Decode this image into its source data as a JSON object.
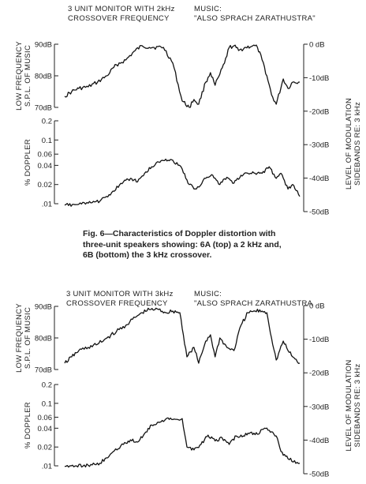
{
  "caption": "Fig. 6—Characteristics of Doppler distortion with three-unit speakers showing: 6A (top) a 2 kHz and, 6B (bottom) the 3 kHz crossover.",
  "chart_data": [
    {
      "type": "line",
      "id": "6A",
      "title_left": [
        "3 UNIT MONITOR WITH 2kHz",
        "CROSSOVER FREQUENCY"
      ],
      "title_right": [
        "MUSIC:",
        "\"ALSO SPRACH ZARATHUSTRA\""
      ],
      "upper_ylabel": [
        "LOW FREQUENCY",
        "S.P.L. OF MUSIC"
      ],
      "upper_yticks": [
        "90dB",
        "80dB",
        "70dB"
      ],
      "lower_ylabel": "% DOPPLER",
      "lower_yticks": [
        "0.2",
        "0.1",
        "0.06",
        "0.04",
        "0.02",
        ".01"
      ],
      "right_ylabel": [
        "LEVEL OF MODULATION",
        "SIDEBANDS RE: 3 kHz"
      ],
      "right_yticks": [
        "0 dB",
        "-10dB",
        "-20dB",
        "-30dB",
        "-40dB",
        "-50dB"
      ],
      "series": [
        {
          "name": "LOW FREQUENCY S.P.L. OF MUSIC",
          "x": [
            0,
            0.03,
            0.06,
            0.1,
            0.14,
            0.18,
            0.22,
            0.26,
            0.3,
            0.33,
            0.36,
            0.38,
            0.42,
            0.46,
            0.5,
            0.53,
            0.55,
            0.57,
            0.6,
            0.62,
            0.64,
            0.66,
            0.68,
            0.7,
            0.72,
            0.74,
            0.77,
            0.8,
            0.82,
            0.84,
            0.86,
            0.88,
            0.9,
            0.93,
            0.95,
            0.97,
            1.0
          ],
          "values": [
            73.5,
            75,
            76,
            76.5,
            78,
            80,
            83.5,
            85,
            88,
            89.5,
            89,
            89,
            89,
            84,
            72,
            70,
            72.5,
            71,
            78,
            81,
            77,
            80.5,
            84,
            89,
            89.5,
            88,
            89,
            89.5,
            89,
            85,
            80,
            74,
            71,
            79,
            76,
            78,
            78
          ]
        },
        {
          "name": "% DOPPLER",
          "x": [
            0,
            0.06,
            0.1,
            0.15,
            0.2,
            0.25,
            0.28,
            0.31,
            0.34,
            0.37,
            0.4,
            0.43,
            0.46,
            0.5,
            0.53,
            0.56,
            0.6,
            0.63,
            0.66,
            0.69,
            0.72,
            0.75,
            0.78,
            0.81,
            0.84,
            0.87,
            0.9,
            0.92,
            0.95,
            0.97,
            1.0
          ],
          "values": [
            0.0095,
            0.0098,
            0.0102,
            0.011,
            0.015,
            0.022,
            0.025,
            0.022,
            0.03,
            0.038,
            0.045,
            0.05,
            0.048,
            0.035,
            0.02,
            0.017,
            0.025,
            0.028,
            0.02,
            0.026,
            0.021,
            0.028,
            0.03,
            0.03,
            0.03,
            0.038,
            0.025,
            0.03,
            0.017,
            0.02,
            0.013
          ]
        }
      ],
      "x_range": [
        0,
        1
      ],
      "upper_ylim": [
        70,
        90
      ],
      "lower_ylim": [
        0.01,
        0.2
      ],
      "lower_scale": "log",
      "right_ylim": [
        -50,
        0
      ]
    },
    {
      "type": "line",
      "id": "6B",
      "title_left": [
        "3 UNIT MONITOR WITH 3kHz",
        "CROSSOVER FREQUENCY"
      ],
      "title_right": [
        "MUSIC:",
        "\"ALSO SPRACH ZARATHUSTRA"
      ],
      "upper_ylabel": [
        "LOW FREQUENCY",
        "S.P.L. OF MUSIC"
      ],
      "upper_yticks": [
        "90dB",
        "80dB",
        "70dB"
      ],
      "lower_ylabel": "% DOPPLER",
      "lower_yticks": [
        "0.2",
        "0.1",
        "0.06",
        "0.04",
        "0.02",
        ".01"
      ],
      "right_ylabel": [
        "LEVEL OF MODULATION",
        "SIDEBANDS RE: 3 kHz"
      ],
      "right_yticks": [
        "0 dB",
        "-10dB",
        "-20dB",
        "-30dB",
        "-40dB",
        "-50dB"
      ],
      "series": [
        {
          "name": "LOW FREQUENCY S.P.L. OF MUSIC",
          "x": [
            0,
            0.03,
            0.06,
            0.1,
            0.14,
            0.18,
            0.22,
            0.26,
            0.3,
            0.33,
            0.36,
            0.4,
            0.43,
            0.46,
            0.49,
            0.52,
            0.55,
            0.57,
            0.6,
            0.62,
            0.64,
            0.66,
            0.69,
            0.72,
            0.75,
            0.78,
            0.81,
            0.84,
            0.86,
            0.88,
            0.9,
            0.93,
            0.95,
            0.97,
            1.0
          ],
          "values": [
            72,
            74,
            76,
            77,
            78,
            80,
            82,
            84,
            86.5,
            88,
            89,
            89,
            88,
            88.5,
            88,
            74,
            77,
            72,
            79,
            81,
            74,
            80,
            77,
            76,
            84,
            88,
            88.5,
            88.5,
            88,
            80,
            73,
            79,
            76,
            74,
            72
          ]
        },
        {
          "name": "% DOPPLER",
          "x": [
            0,
            0.05,
            0.1,
            0.15,
            0.2,
            0.25,
            0.28,
            0.31,
            0.34,
            0.37,
            0.4,
            0.43,
            0.46,
            0.5,
            0.52,
            0.55,
            0.58,
            0.61,
            0.64,
            0.67,
            0.7,
            0.73,
            0.76,
            0.79,
            0.82,
            0.85,
            0.88,
            0.9,
            0.92,
            0.95,
            1.0
          ],
          "values": [
            0.0098,
            0.01,
            0.0102,
            0.011,
            0.016,
            0.022,
            0.026,
            0.024,
            0.033,
            0.045,
            0.05,
            0.056,
            0.055,
            0.057,
            0.02,
            0.018,
            0.022,
            0.031,
            0.025,
            0.028,
            0.022,
            0.03,
            0.03,
            0.034,
            0.032,
            0.04,
            0.035,
            0.03,
            0.017,
            0.013,
            0.011
          ]
        }
      ],
      "x_range": [
        0,
        1
      ],
      "upper_ylim": [
        70,
        90
      ],
      "lower_ylim": [
        0.01,
        0.2
      ],
      "lower_scale": "log",
      "right_ylim": [
        -50,
        0
      ]
    }
  ]
}
